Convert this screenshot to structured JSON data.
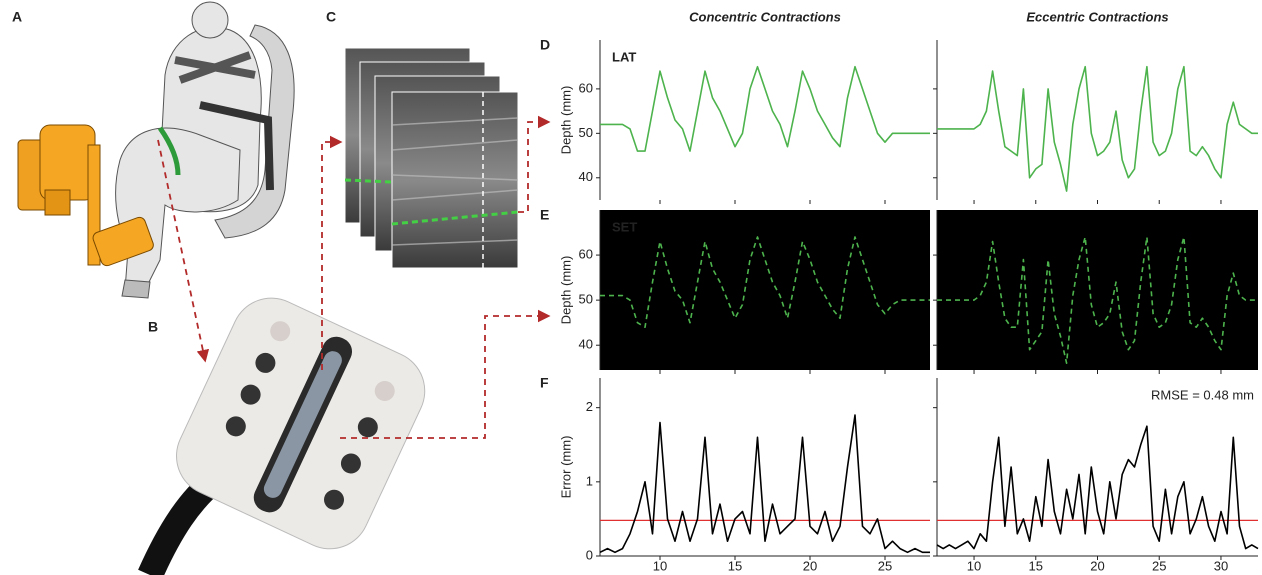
{
  "figure_labels": [
    "A",
    "B",
    "C"
  ],
  "chart_data": [
    {
      "type": "line",
      "panel": "D",
      "title": "Concentric Contractions",
      "annotation": "LAT",
      "ylabel": "Depth (mm)",
      "xlim": [
        6,
        28
      ],
      "ylim": [
        35,
        71
      ],
      "yticks": [
        40,
        50,
        60
      ],
      "x": [
        6,
        6.5,
        7,
        7.5,
        8,
        8.5,
        9,
        9.5,
        10,
        10.5,
        11,
        11.5,
        12,
        12.5,
        13,
        13.5,
        14,
        14.5,
        15,
        15.5,
        16,
        16.5,
        17,
        17.5,
        18,
        18.5,
        19,
        19.5,
        20,
        20.5,
        21,
        21.5,
        22,
        22.5,
        23,
        23.5,
        24,
        24.5,
        25,
        25.5,
        26,
        26.5,
        27,
        27.5,
        28
      ],
      "series": [
        {
          "color": "#4db34d",
          "dash": false,
          "values": [
            52,
            52,
            52,
            52,
            51,
            46,
            46,
            55,
            64,
            58,
            53,
            51,
            46,
            55,
            64,
            58,
            55,
            51,
            47,
            50,
            60,
            65,
            60,
            55,
            52,
            47,
            55,
            64,
            60,
            55,
            52,
            49,
            47,
            58,
            65,
            60,
            55,
            50,
            48,
            50,
            50,
            50,
            50,
            50,
            50
          ]
        }
      ]
    },
    {
      "type": "line",
      "title": "Eccentric Contractions",
      "xlim": [
        7,
        33
      ],
      "ylim": [
        35,
        71
      ],
      "x": [
        7,
        7.5,
        8,
        8.5,
        9,
        9.5,
        10,
        10.5,
        11,
        11.5,
        12,
        12.5,
        13,
        13.5,
        14,
        14.5,
        15,
        15.5,
        16,
        16.5,
        17,
        17.5,
        18,
        18.5,
        19,
        19.5,
        20,
        20.5,
        21,
        21.5,
        22,
        22.5,
        23,
        23.5,
        24,
        24.5,
        25,
        25.5,
        26,
        26.5,
        27,
        27.5,
        28,
        28.5,
        29,
        29.5,
        30,
        30.5,
        31,
        31.5,
        32,
        32.5,
        33
      ],
      "series": [
        {
          "color": "#4db34d",
          "dash": false,
          "values": [
            51,
            51,
            51,
            51,
            51,
            51,
            51,
            52,
            55,
            64,
            55,
            47,
            46,
            45,
            60,
            40,
            42,
            43,
            60,
            48,
            43,
            37,
            52,
            60,
            65,
            50,
            45,
            46,
            48,
            55,
            44,
            40,
            42,
            55,
            65,
            48,
            45,
            46,
            50,
            60,
            65,
            46,
            45,
            47,
            45,
            42,
            40,
            52,
            57,
            52,
            51,
            50,
            50
          ]
        }
      ]
    },
    {
      "type": "line",
      "panel": "E",
      "annotation": "SET",
      "ylabel": "Depth (mm)",
      "background": "#000000",
      "xlim": [
        6,
        28
      ],
      "ylim": [
        34.5,
        70
      ],
      "yticks": [
        40,
        50,
        60
      ],
      "x": [
        6,
        6.5,
        7,
        7.5,
        8,
        8.5,
        9,
        9.5,
        10,
        10.5,
        11,
        11.5,
        12,
        12.5,
        13,
        13.5,
        14,
        14.5,
        15,
        15.5,
        16,
        16.5,
        17,
        17.5,
        18,
        18.5,
        19,
        19.5,
        20,
        20.5,
        21,
        21.5,
        22,
        22.5,
        23,
        23.5,
        24,
        24.5,
        25,
        25.5,
        26,
        26.5,
        27,
        27.5,
        28
      ],
      "series": [
        {
          "color": "#4db34d",
          "dash": true,
          "values": [
            51,
            51,
            51,
            51,
            50,
            45,
            44,
            54,
            63,
            57,
            52,
            50,
            45,
            54,
            63,
            57,
            54,
            50,
            46,
            49,
            59,
            64,
            59,
            54,
            51,
            46,
            54,
            63,
            59,
            54,
            51,
            48,
            46,
            57,
            64,
            59,
            54,
            49,
            47,
            49,
            50,
            50,
            50,
            50,
            50
          ]
        }
      ]
    },
    {
      "type": "line",
      "background": "#000000",
      "xlim": [
        7,
        33
      ],
      "ylim": [
        34.5,
        70
      ],
      "x": [
        7,
        7.5,
        8,
        8.5,
        9,
        9.5,
        10,
        10.5,
        11,
        11.5,
        12,
        12.5,
        13,
        13.5,
        14,
        14.5,
        15,
        15.5,
        16,
        16.5,
        17,
        17.5,
        18,
        18.5,
        19,
        19.5,
        20,
        20.5,
        21,
        21.5,
        22,
        22.5,
        23,
        23.5,
        24,
        24.5,
        25,
        25.5,
        26,
        26.5,
        27,
        27.5,
        28,
        28.5,
        29,
        29.5,
        30,
        30.5,
        31,
        31.5,
        32,
        32.5,
        33
      ],
      "series": [
        {
          "color": "#4db34d",
          "dash": true,
          "values": [
            50,
            50,
            50,
            50,
            50,
            50,
            50,
            51,
            54,
            63,
            54,
            46,
            44,
            44,
            59,
            39,
            41,
            43,
            59,
            47,
            42,
            36,
            51,
            59,
            64,
            49,
            44,
            45,
            47,
            54,
            43,
            39,
            41,
            54,
            64,
            47,
            44,
            45,
            49,
            59,
            64,
            45,
            44,
            46,
            44,
            41,
            39,
            51,
            56,
            51,
            50,
            50,
            50
          ]
        }
      ]
    },
    {
      "type": "line",
      "panel": "F",
      "ylabel": "Error (mm)",
      "hline": 0.48,
      "hline_color": "#e03030",
      "xlim": [
        6,
        28
      ],
      "ylim": [
        0,
        2.4
      ],
      "yticks": [
        0,
        1,
        2
      ],
      "xticks": [
        10,
        15,
        20,
        25
      ],
      "x": [
        6,
        6.5,
        7,
        7.5,
        8,
        8.5,
        9,
        9.5,
        10,
        10.5,
        11,
        11.5,
        12,
        12.5,
        13,
        13.5,
        14,
        14.5,
        15,
        15.5,
        16,
        16.5,
        17,
        17.5,
        18,
        18.5,
        19,
        19.5,
        20,
        20.5,
        21,
        21.5,
        22,
        22.5,
        23,
        23.5,
        24,
        24.5,
        25,
        25.5,
        26,
        26.5,
        27,
        27.5,
        28
      ],
      "series": [
        {
          "color": "#000000",
          "dash": false,
          "values": [
            0.05,
            0.1,
            0.05,
            0.1,
            0.3,
            0.6,
            1.0,
            0.3,
            1.8,
            0.5,
            0.2,
            0.6,
            0.2,
            0.5,
            1.6,
            0.3,
            0.7,
            0.2,
            0.5,
            0.6,
            0.3,
            1.6,
            0.2,
            0.7,
            0.3,
            0.4,
            0.5,
            1.6,
            0.4,
            0.3,
            0.6,
            0.2,
            0.4,
            1.2,
            1.9,
            0.4,
            0.3,
            0.5,
            0.1,
            0.2,
            0.1,
            0.05,
            0.1,
            0.05,
            0.05
          ]
        }
      ]
    },
    {
      "type": "line",
      "annotation": "RMSE = 0.48 mm",
      "hline": 0.48,
      "hline_color": "#e03030",
      "xlim": [
        7,
        33
      ],
      "ylim": [
        0,
        2.4
      ],
      "xticks": [
        10,
        15,
        20,
        25,
        30
      ],
      "x": [
        7,
        7.5,
        8,
        8.5,
        9,
        9.5,
        10,
        10.5,
        11,
        11.5,
        12,
        12.5,
        13,
        13.5,
        14,
        14.5,
        15,
        15.5,
        16,
        16.5,
        17,
        17.5,
        18,
        18.5,
        19,
        19.5,
        20,
        20.5,
        21,
        21.5,
        22,
        22.5,
        23,
        23.5,
        24,
        24.5,
        25,
        25.5,
        26,
        26.5,
        27,
        27.5,
        28,
        28.5,
        29,
        29.5,
        30,
        30.5,
        31,
        31.5,
        32,
        32.5,
        33
      ],
      "series": [
        {
          "color": "#000000",
          "dash": false,
          "values": [
            0.15,
            0.1,
            0.15,
            0.1,
            0.15,
            0.2,
            0.1,
            0.3,
            0.2,
            1.0,
            1.6,
            0.4,
            1.2,
            0.3,
            0.5,
            0.2,
            0.8,
            0.4,
            1.3,
            0.6,
            0.3,
            0.9,
            0.5,
            1.1,
            0.3,
            1.2,
            0.6,
            0.3,
            1.0,
            0.5,
            1.1,
            1.3,
            1.2,
            1.5,
            1.75,
            0.4,
            0.2,
            0.9,
            0.3,
            0.8,
            1.0,
            0.3,
            0.5,
            0.8,
            0.4,
            0.2,
            0.6,
            0.3,
            1.6,
            0.4,
            0.1,
            0.15,
            0.1
          ]
        }
      ]
    }
  ]
}
